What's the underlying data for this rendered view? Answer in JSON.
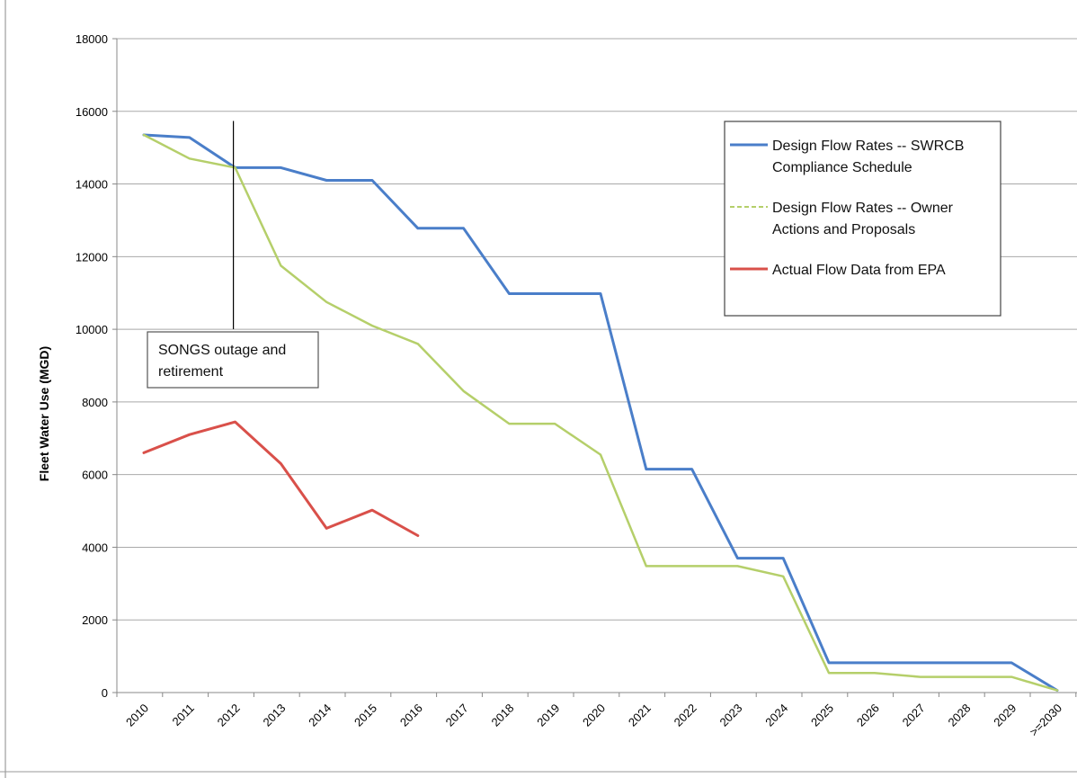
{
  "chart_data": {
    "type": "line",
    "xlabel": "",
    "ylabel": "Fleet Water Use  (MGD)",
    "ylim": [
      0,
      18000
    ],
    "yticks": [
      "0",
      "2000",
      "4000",
      "6000",
      "8000",
      "10000",
      "12000",
      "14000",
      "16000",
      "18000"
    ],
    "grid": "horizontal",
    "legend_position": "top-right",
    "categories": [
      "2010",
      "2011",
      "2012",
      "2013",
      "2014",
      "2015",
      "2016",
      "2017",
      "2018",
      "2019",
      "2020",
      "2021",
      "2022",
      "2023",
      "2024",
      "2025",
      "2026",
      "2027",
      "2028",
      "2029",
      ">=2030"
    ],
    "series": [
      {
        "name": "Design Flow Rates --  SWRCB Compliance Schedule",
        "legend_lines": [
          "Design Flow Rates --  SWRCB",
          "Compliance Schedule"
        ],
        "color": "#4a7ec9",
        "style": "solid",
        "values": [
          15350,
          15280,
          14450,
          14450,
          14100,
          14100,
          12780,
          12780,
          10980,
          10980,
          10980,
          6150,
          6150,
          3700,
          3700,
          820,
          820,
          820,
          820,
          820,
          60
        ]
      },
      {
        "name": "Design Flow Rates -- Owner Actions and Proposals",
        "legend_lines": [
          "Design Flow Rates -- Owner",
          "Actions and Proposals"
        ],
        "color": "#b5cf6a",
        "style": "dashed",
        "values": [
          15350,
          14700,
          14450,
          11750,
          10750,
          10100,
          9600,
          8300,
          7400,
          7400,
          6550,
          3480,
          3480,
          3480,
          3200,
          540,
          540,
          430,
          430,
          430,
          60
        ]
      },
      {
        "name": "Actual Flow Data from EPA",
        "legend_lines": [
          "Actual Flow Data from EPA"
        ],
        "color": "#d9504a",
        "style": "solid",
        "values": [
          6600,
          7100,
          7450,
          6300,
          4520,
          5020,
          4320,
          null,
          null,
          null,
          null,
          null,
          null,
          null,
          null,
          null,
          null,
          null,
          null,
          null,
          null
        ]
      }
    ],
    "annotations": [
      {
        "text_lines": [
          "SONGS outage and",
          "retirement"
        ],
        "x_category": "2012",
        "y_value": 14250
      }
    ]
  }
}
